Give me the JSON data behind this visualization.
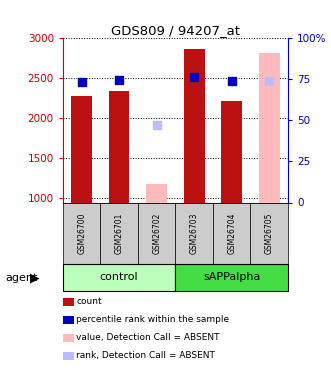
{
  "title": "GDS809 / 94207_at",
  "samples": [
    "GSM26700",
    "GSM26701",
    "GSM26702",
    "GSM26703",
    "GSM26704",
    "GSM26705"
  ],
  "ylim_left": [
    950,
    3000
  ],
  "ylim_right": [
    0,
    100
  ],
  "yticks_left": [
    1000,
    1500,
    2000,
    2500,
    3000
  ],
  "yticks_right": [
    0,
    25,
    50,
    75,
    100
  ],
  "count_values": [
    2270,
    2340,
    null,
    2860,
    2210,
    null
  ],
  "rank_values": [
    73.0,
    74.5,
    null,
    76.0,
    73.5,
    null
  ],
  "absent_value_values": [
    null,
    null,
    1185,
    null,
    null,
    2810
  ],
  "absent_rank_values": [
    null,
    null,
    47.0,
    null,
    null,
    73.5
  ],
  "count_color": "#bb1111",
  "rank_color": "#0000bb",
  "absent_value_color": "#ffbbbb",
  "absent_rank_color": "#bbbbff",
  "control_bg": "#bbffbb",
  "sAPPalpha_bg": "#44dd44",
  "sample_bg": "#cccccc",
  "left_axis_color": "#cc0000",
  "right_axis_color": "#0000cc"
}
